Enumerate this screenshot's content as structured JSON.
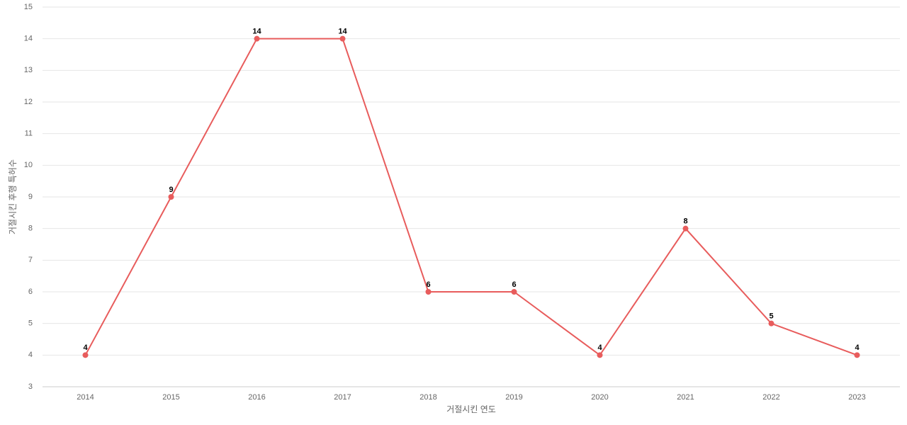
{
  "chart_data": {
    "type": "line",
    "x_label": "거절시킨 연도",
    "y_label": "거절시킨 후행 특허수",
    "categories": [
      "2014",
      "2015",
      "2016",
      "2017",
      "2018",
      "2019",
      "2020",
      "2021",
      "2022",
      "2023"
    ],
    "series": [
      {
        "color": "#e85c5c",
        "values": [
          4,
          9,
          14,
          14,
          6,
          6,
          4,
          8,
          5,
          4
        ]
      }
    ],
    "ylim": [
      3,
      15
    ],
    "yticks": [
      3,
      4,
      5,
      6,
      7,
      8,
      9,
      10,
      11,
      12,
      13,
      14,
      15
    ],
    "grid": true
  }
}
